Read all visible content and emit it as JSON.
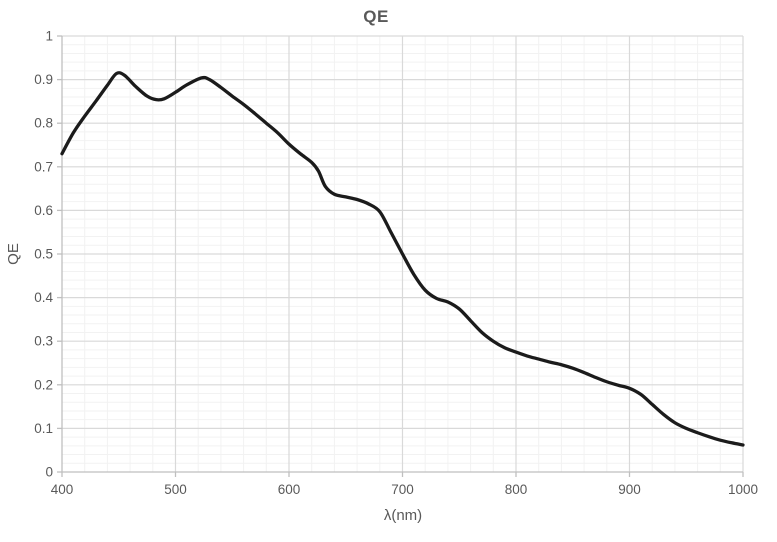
{
  "chart_data": {
    "type": "line",
    "title": "QE",
    "xlabel": "λ(nm)",
    "ylabel": "QE",
    "xlim": [
      400,
      1000
    ],
    "ylim": [
      0,
      1
    ],
    "x_major_step": 100,
    "x_minor_step": 20,
    "y_major_step": 0.1,
    "y_minor_step": 0.02,
    "x_ticks": [
      "400",
      "500",
      "600",
      "700",
      "800",
      "900",
      "1000"
    ],
    "y_ticks": [
      "1",
      "0.9",
      "0.8",
      "0.7",
      "0.6",
      "0.5",
      "0.4",
      "0.3",
      "0.2",
      "0.1",
      "0"
    ],
    "grid": "major+minor",
    "legend": "none",
    "series": [
      {
        "name": "QE",
        "color": "#1b1b1b",
        "stroke_width": 3.3,
        "points": [
          [
            400,
            0.73
          ],
          [
            410,
            0.778
          ],
          [
            420,
            0.816
          ],
          [
            430,
            0.851
          ],
          [
            440,
            0.887
          ],
          [
            448,
            0.914
          ],
          [
            455,
            0.91
          ],
          [
            465,
            0.884
          ],
          [
            475,
            0.862
          ],
          [
            483,
            0.854
          ],
          [
            490,
            0.856
          ],
          [
            500,
            0.871
          ],
          [
            510,
            0.888
          ],
          [
            523,
            0.904
          ],
          [
            530,
            0.9
          ],
          [
            540,
            0.882
          ],
          [
            550,
            0.862
          ],
          [
            560,
            0.843
          ],
          [
            570,
            0.822
          ],
          [
            580,
            0.8
          ],
          [
            590,
            0.778
          ],
          [
            600,
            0.752
          ],
          [
            610,
            0.73
          ],
          [
            620,
            0.71
          ],
          [
            626,
            0.69
          ],
          [
            632,
            0.655
          ],
          [
            640,
            0.637
          ],
          [
            650,
            0.631
          ],
          [
            660,
            0.625
          ],
          [
            670,
            0.615
          ],
          [
            680,
            0.597
          ],
          [
            690,
            0.549
          ],
          [
            700,
            0.5
          ],
          [
            710,
            0.453
          ],
          [
            720,
            0.417
          ],
          [
            730,
            0.398
          ],
          [
            740,
            0.39
          ],
          [
            750,
            0.374
          ],
          [
            760,
            0.347
          ],
          [
            770,
            0.32
          ],
          [
            780,
            0.3
          ],
          [
            790,
            0.285
          ],
          [
            800,
            0.275
          ],
          [
            810,
            0.266
          ],
          [
            820,
            0.259
          ],
          [
            830,
            0.252
          ],
          [
            840,
            0.246
          ],
          [
            850,
            0.238
          ],
          [
            860,
            0.228
          ],
          [
            870,
            0.217
          ],
          [
            880,
            0.207
          ],
          [
            890,
            0.199
          ],
          [
            900,
            0.192
          ],
          [
            910,
            0.178
          ],
          [
            920,
            0.155
          ],
          [
            930,
            0.132
          ],
          [
            940,
            0.113
          ],
          [
            950,
            0.1
          ],
          [
            960,
            0.09
          ],
          [
            970,
            0.081
          ],
          [
            980,
            0.073
          ],
          [
            990,
            0.067
          ],
          [
            1000,
            0.062
          ]
        ]
      }
    ]
  },
  "colors": {
    "background": "#ffffff",
    "text": "#595959",
    "axis_line": "#bfbfbf",
    "grid_major": "#d9d9d9",
    "grid_minor": "#f2f2f2",
    "curve": "#1b1b1b"
  }
}
